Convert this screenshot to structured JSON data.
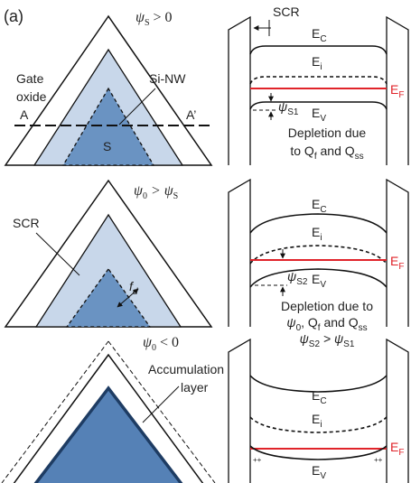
{
  "panel_label": "(a)",
  "panels": [
    {
      "condition": [
        "ψ",
        "S",
        " > 0"
      ],
      "cross_section": {
        "oxide_label": [
          "Gate",
          "oxide"
        ],
        "nanowire_label": "Si-NW",
        "cut_left": "A",
        "cut_right": "A’",
        "core_label": "S"
      },
      "band_diagram": {
        "scr_label": "SCR",
        "ec": [
          "E",
          "C"
        ],
        "ei": [
          "E",
          "i"
        ],
        "ef": [
          "E",
          "F"
        ],
        "ev": [
          "E",
          "V"
        ],
        "potential": [
          "ψ",
          "S1"
        ],
        "caption": [
          [
            "Depletion due"
          ],
          [
            "to Q",
            "f",
            " and Q",
            "ss"
          ]
        ]
      }
    },
    {
      "condition": [
        "ψ",
        "0",
        " > ψ",
        "S"
      ],
      "cross_section": {
        "scr_label": "SCR",
        "width_label": [
          "f",
          "d"
        ]
      },
      "band_diagram": {
        "ec": [
          "E",
          "C"
        ],
        "ei": [
          "E",
          "i"
        ],
        "ef": [
          "E",
          "F"
        ],
        "ev": [
          "E",
          "V"
        ],
        "potential": [
          "ψ",
          "S2"
        ],
        "caption": [
          [
            "Depletion due to"
          ],
          [
            "ψ",
            "0",
            ", Q",
            "f",
            " and Q",
            "ss"
          ],
          [
            "ψ",
            "S2",
            " > ψ",
            "S1"
          ]
        ]
      }
    },
    {
      "condition": [
        "ψ",
        "0",
        " < 0"
      ],
      "cross_section": {
        "accumulation_label": [
          "Accumulation",
          "layer"
        ]
      },
      "band_diagram": {
        "ec": [
          "E",
          "C"
        ],
        "ei": [
          "E",
          "i"
        ],
        "ef": [
          "E",
          "F"
        ],
        "ev": [
          "E",
          "V"
        ],
        "charge_marks": [
          "++",
          "++"
        ]
      }
    }
  ]
}
